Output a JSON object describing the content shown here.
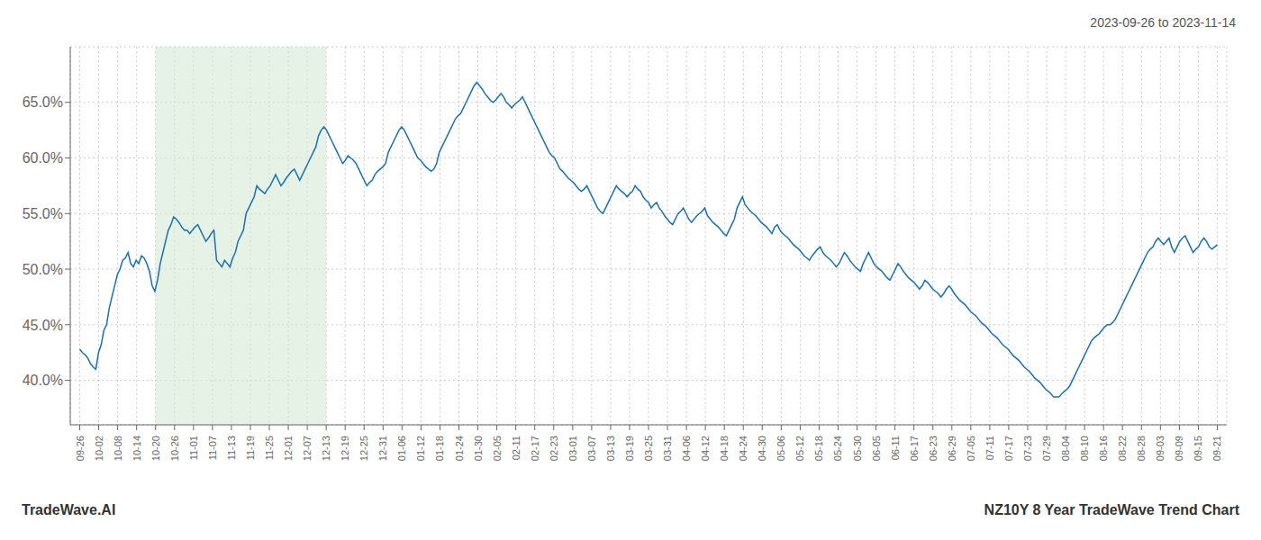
{
  "chart_data": {
    "type": "line",
    "title": "NZ10Y 8 Year TradeWave Trend Chart",
    "subtitle": "2023-09-26 to 2023-11-14",
    "annotation": "TradeWave.AI",
    "color": "#1a6fb5",
    "grid": true,
    "line_style": "solid",
    "highlight": {
      "from": "10-20",
      "to": "12-13",
      "color": "#d6ead6"
    },
    "xlim": [
      -0.5,
      60.5
    ],
    "xticks": [
      {
        "value": 0,
        "label": "09-26"
      },
      {
        "value": 1,
        "label": "10-02"
      },
      {
        "value": 2,
        "label": "10-08"
      },
      {
        "value": 3,
        "label": "10-14"
      },
      {
        "value": 4,
        "label": "10-20"
      },
      {
        "value": 5,
        "label": "10-26"
      },
      {
        "value": 6,
        "label": "11-01"
      },
      {
        "value": 7,
        "label": "11-07"
      },
      {
        "value": 8,
        "label": "11-13"
      },
      {
        "value": 9,
        "label": "11-19"
      },
      {
        "value": 10,
        "label": "11-25"
      },
      {
        "value": 11,
        "label": "12-01"
      },
      {
        "value": 12,
        "label": "12-07"
      },
      {
        "value": 13,
        "label": "12-13"
      },
      {
        "value": 14,
        "label": "12-19"
      },
      {
        "value": 15,
        "label": "12-25"
      },
      {
        "value": 16,
        "label": "12-31"
      },
      {
        "value": 17,
        "label": "01-06"
      },
      {
        "value": 18,
        "label": "01-12"
      },
      {
        "value": 19,
        "label": "01-18"
      },
      {
        "value": 20,
        "label": "01-24"
      },
      {
        "value": 21,
        "label": "01-30"
      },
      {
        "value": 22,
        "label": "02-05"
      },
      {
        "value": 23,
        "label": "02-11"
      },
      {
        "value": 24,
        "label": "02-17"
      },
      {
        "value": 25,
        "label": "02-23"
      },
      {
        "value": 26,
        "label": "03-01"
      },
      {
        "value": 27,
        "label": "03-07"
      },
      {
        "value": 28,
        "label": "03-13"
      },
      {
        "value": 29,
        "label": "03-19"
      },
      {
        "value": 30,
        "label": "03-25"
      },
      {
        "value": 31,
        "label": "03-31"
      },
      {
        "value": 32,
        "label": "04-06"
      },
      {
        "value": 33,
        "label": "04-12"
      },
      {
        "value": 34,
        "label": "04-18"
      },
      {
        "value": 35,
        "label": "04-24"
      },
      {
        "value": 36,
        "label": "04-30"
      },
      {
        "value": 37,
        "label": "05-06"
      },
      {
        "value": 38,
        "label": "05-12"
      },
      {
        "value": 39,
        "label": "05-18"
      },
      {
        "value": 40,
        "label": "05-24"
      },
      {
        "value": 41,
        "label": "05-30"
      },
      {
        "value": 42,
        "label": "06-05"
      },
      {
        "value": 43,
        "label": "06-11"
      },
      {
        "value": 44,
        "label": "06-17"
      },
      {
        "value": 45,
        "label": "06-23"
      },
      {
        "value": 46,
        "label": "06-29"
      },
      {
        "value": 47,
        "label": "07-05"
      },
      {
        "value": 48,
        "label": "07-11"
      },
      {
        "value": 49,
        "label": "07-17"
      },
      {
        "value": 50,
        "label": "07-23"
      },
      {
        "value": 51,
        "label": "07-29"
      },
      {
        "value": 52,
        "label": "08-04"
      },
      {
        "value": 53,
        "label": "08-10"
      },
      {
        "value": 54,
        "label": "08-16"
      },
      {
        "value": 55,
        "label": "08-22"
      },
      {
        "value": 56,
        "label": "08-28"
      },
      {
        "value": 57,
        "label": "09-03"
      },
      {
        "value": 58,
        "label": "09-09"
      },
      {
        "value": 59,
        "label": "09-15"
      },
      {
        "value": 60,
        "label": "09-21"
      }
    ],
    "ylim": [
      36.0,
      70.0
    ],
    "yticks": [
      {
        "value": 40.0,
        "label": "40.0%"
      },
      {
        "value": 45.0,
        "label": "45.0%"
      },
      {
        "value": 50.0,
        "label": "50.0%"
      },
      {
        "value": 55.0,
        "label": "55.0%"
      },
      {
        "value": 60.0,
        "label": "60.0%"
      },
      {
        "value": 65.0,
        "label": "65.0%"
      }
    ],
    "values": [
      42.8,
      42.5,
      42.3,
      42.0,
      41.5,
      41.2,
      41.0,
      42.5,
      43.2,
      44.5,
      45.0,
      46.5,
      47.5,
      48.5,
      49.5,
      50.0,
      50.8,
      51.0,
      51.5,
      50.5,
      50.2,
      50.8,
      50.5,
      51.2,
      51.0,
      50.5,
      49.8,
      48.5,
      48.0,
      49.0,
      50.5,
      51.5,
      52.5,
      53.5,
      54.0,
      54.7,
      54.5,
      54.2,
      53.8,
      53.5,
      53.5,
      53.2,
      53.5,
      53.8,
      54.0,
      53.5,
      53.0,
      52.5,
      52.8,
      53.2,
      53.5,
      50.8,
      50.5,
      50.2,
      50.8,
      50.5,
      50.2,
      51.0,
      51.5,
      52.5,
      53.0,
      53.5,
      55.0,
      55.5,
      56.0,
      56.5,
      57.5,
      57.2,
      57.0,
      56.8,
      57.2,
      57.5,
      58.0,
      58.5,
      58.0,
      57.5,
      57.8,
      58.2,
      58.5,
      58.8,
      59.0,
      58.5,
      58.0,
      58.5,
      59.0,
      59.5,
      60.0,
      60.5,
      61.0,
      62.0,
      62.5,
      62.8,
      62.5,
      62.0,
      61.5,
      61.0,
      60.5,
      60.0,
      59.5,
      59.8,
      60.2,
      60.0,
      59.8,
      59.5,
      59.0,
      58.5,
      58.0,
      57.5,
      57.8,
      58.0,
      58.5,
      58.8,
      59.0,
      59.2,
      59.5,
      60.5,
      61.0,
      61.5,
      62.0,
      62.5,
      62.8,
      62.5,
      62.0,
      61.5,
      61.0,
      60.5,
      60.0,
      59.8,
      59.5,
      59.2,
      59.0,
      58.8,
      59.0,
      59.5,
      60.5,
      61.0,
      61.5,
      62.0,
      62.5,
      63.0,
      63.5,
      63.8,
      64.0,
      64.5,
      65.0,
      65.5,
      66.0,
      66.5,
      66.8,
      66.5,
      66.2,
      65.8,
      65.5,
      65.2,
      65.0,
      65.2,
      65.5,
      65.8,
      65.5,
      65.0,
      64.8,
      64.5,
      64.8,
      65.0,
      65.2,
      65.5,
      65.0,
      64.5,
      64.0,
      63.5,
      63.0,
      62.5,
      62.0,
      61.5,
      61.0,
      60.5,
      60.2,
      60.0,
      59.5,
      59.0,
      58.8,
      58.5,
      58.2,
      58.0,
      57.8,
      57.5,
      57.2,
      57.0,
      57.2,
      57.5,
      57.0,
      56.5,
      56.0,
      55.5,
      55.2,
      55.0,
      55.5,
      56.0,
      56.5,
      57.0,
      57.5,
      57.2,
      57.0,
      56.8,
      56.5,
      56.8,
      57.0,
      57.5,
      57.2,
      57.0,
      56.5,
      56.2,
      56.0,
      55.5,
      55.8,
      56.0,
      55.5,
      55.2,
      54.8,
      54.5,
      54.2,
      54.0,
      54.5,
      55.0,
      55.2,
      55.5,
      55.0,
      54.5,
      54.2,
      54.5,
      54.8,
      55.0,
      55.2,
      55.5,
      54.8,
      54.5,
      54.2,
      54.0,
      53.8,
      53.5,
      53.2,
      53.0,
      53.5,
      54.0,
      54.5,
      55.5,
      56.0,
      56.5,
      55.8,
      55.5,
      55.2,
      55.0,
      54.8,
      54.5,
      54.2,
      54.0,
      53.8,
      53.5,
      53.2,
      53.8,
      54.0,
      53.5,
      53.2,
      53.0,
      52.8,
      52.5,
      52.2,
      52.0,
      51.8,
      51.5,
      51.2,
      51.0,
      50.8,
      51.2,
      51.5,
      51.8,
      52.0,
      51.5,
      51.2,
      51.0,
      50.8,
      50.5,
      50.2,
      50.5,
      51.0,
      51.5,
      51.2,
      50.8,
      50.5,
      50.2,
      50.0,
      49.8,
      50.5,
      51.0,
      51.5,
      51.0,
      50.5,
      50.2,
      50.0,
      49.8,
      49.5,
      49.2,
      49.0,
      49.5,
      50.0,
      50.5,
      50.2,
      49.8,
      49.5,
      49.2,
      49.0,
      48.8,
      48.5,
      48.2,
      48.5,
      49.0,
      48.8,
      48.5,
      48.2,
      48.0,
      47.8,
      47.5,
      47.8,
      48.2,
      48.5,
      48.2,
      47.8,
      47.5,
      47.2,
      47.0,
      46.8,
      46.5,
      46.2,
      46.0,
      45.8,
      45.5,
      45.2,
      45.0,
      44.8,
      44.5,
      44.2,
      44.0,
      43.8,
      43.5,
      43.2,
      43.0,
      42.8,
      42.5,
      42.2,
      42.0,
      41.8,
      41.5,
      41.2,
      41.0,
      40.8,
      40.5,
      40.2,
      40.0,
      39.8,
      39.5,
      39.2,
      39.0,
      38.8,
      38.5,
      38.5,
      38.5,
      38.8,
      39.0,
      39.2,
      39.5,
      40.0,
      40.5,
      41.0,
      41.5,
      42.0,
      42.5,
      43.0,
      43.5,
      43.8,
      44.0,
      44.2,
      44.5,
      44.8,
      45.0,
      45.0,
      45.2,
      45.5,
      46.0,
      46.5,
      47.0,
      47.5,
      48.0,
      48.5,
      49.0,
      49.5,
      50.0,
      50.5,
      51.0,
      51.5,
      51.8,
      52.0,
      52.5,
      52.8,
      52.5,
      52.2,
      52.5,
      52.8,
      52.0,
      51.5,
      52.0,
      52.5,
      52.8,
      53.0,
      52.5,
      52.0,
      51.5,
      51.8,
      52.0,
      52.5,
      52.8,
      52.5,
      52.0,
      51.8,
      52.0,
      52.2
    ]
  }
}
